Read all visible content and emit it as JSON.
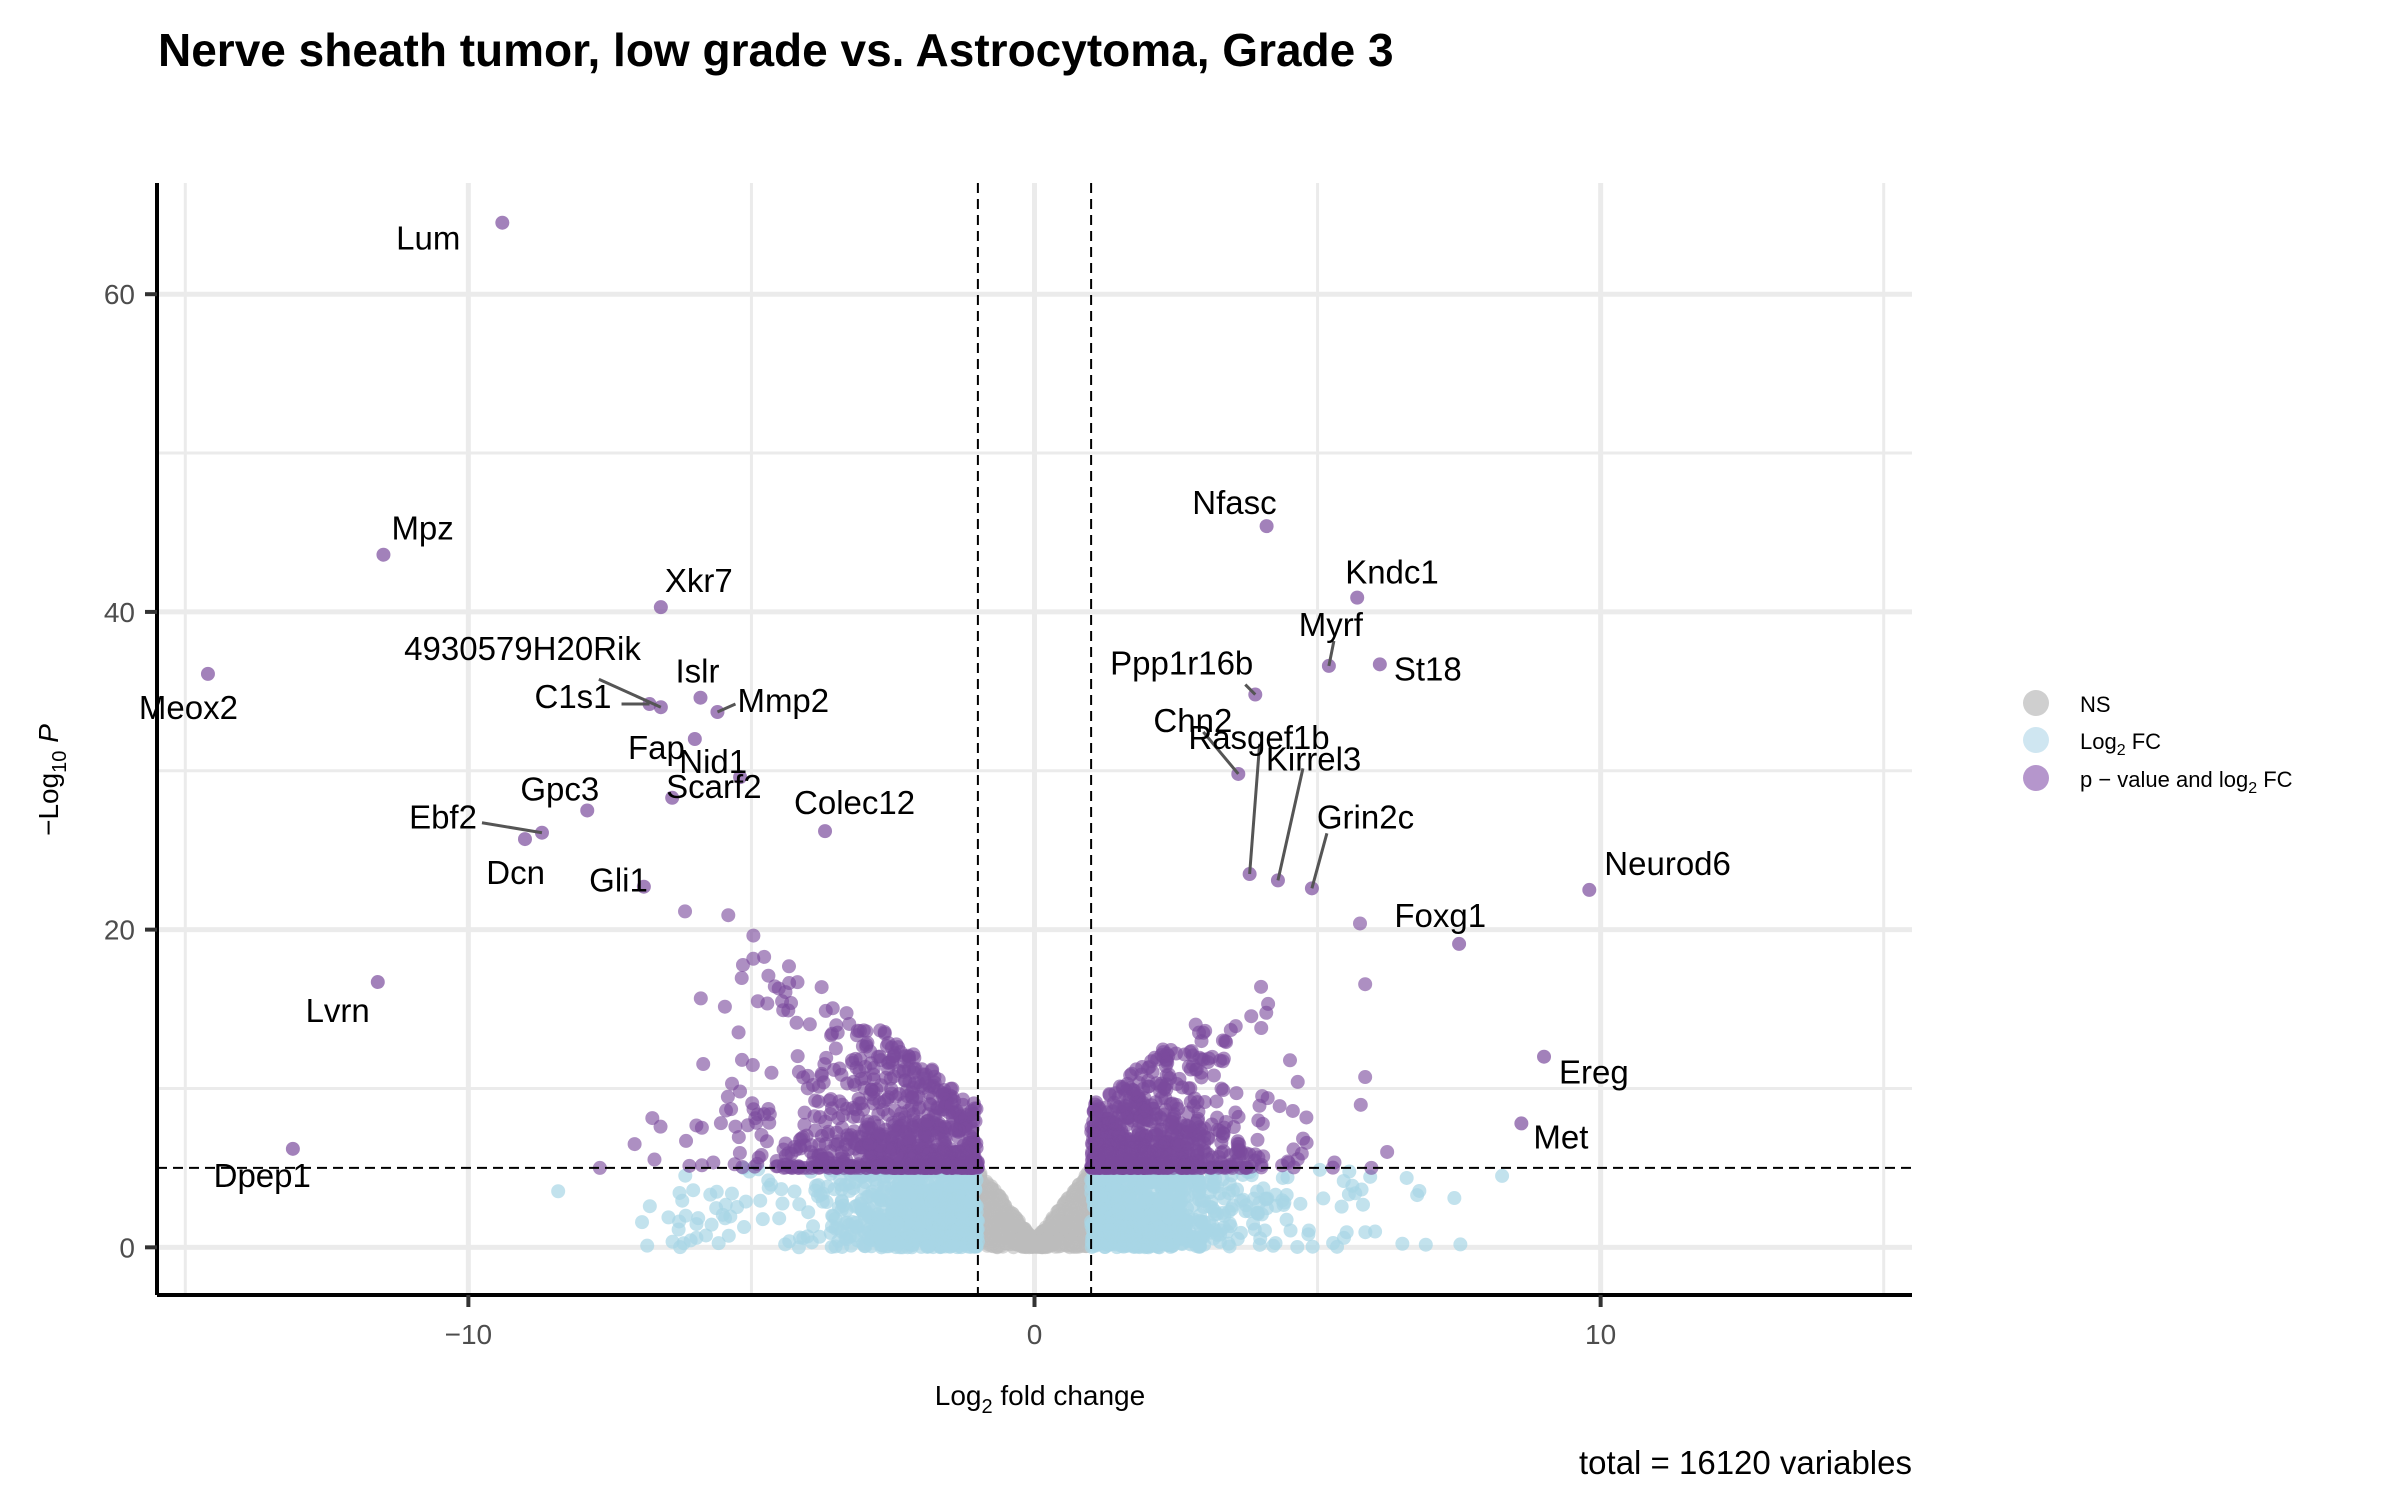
{
  "chart_data": {
    "type": "scatter",
    "title": "Nerve sheath tumor, low grade vs. Astrocytoma, Grade 3",
    "xlabel": "Log2 fold change",
    "ylabel": "−Log10 P",
    "xlim": [
      -15.5,
      15.5
    ],
    "ylim": [
      -3,
      67
    ],
    "x_ticks": [
      -10,
      0,
      10
    ],
    "x_tick_labels": [
      "−10",
      "0",
      "10"
    ],
    "y_ticks": [
      0,
      20,
      40,
      60
    ],
    "y_tick_labels": [
      "0",
      "20",
      "40",
      "60"
    ],
    "grid": true,
    "fc_cutoff": 1,
    "p_cutoff": 5,
    "legend_position": "right",
    "legend": [
      {
        "name": "NS",
        "color": "#cfcfcf"
      },
      {
        "name": "Log2 FC",
        "color": "#cfe6f1"
      },
      {
        "name": "p − value and log2 FC",
        "color": "#b596cc"
      }
    ],
    "colors": {
      "ns": "#bdbdbd",
      "fc": "#a8d5e6",
      "sig": "#7a4b9c"
    },
    "caption": "total = 16120 variables",
    "labeled_points": [
      {
        "gene": "Lum",
        "x": -9.4,
        "y": 64.5
      },
      {
        "gene": "Mpz",
        "x": -11.5,
        "y": 43.6
      },
      {
        "gene": "Xkr7",
        "x": -6.6,
        "y": 40.3
      },
      {
        "gene": "Meox2",
        "x": -14.6,
        "y": 36.1
      },
      {
        "gene": "4930579H20Rik",
        "x": -6.6,
        "y": 34.0
      },
      {
        "gene": "Islr",
        "x": -5.9,
        "y": 34.6
      },
      {
        "gene": "C1s1",
        "x": -6.8,
        "y": 34.2
      },
      {
        "gene": "Mmp2",
        "x": -5.6,
        "y": 33.7
      },
      {
        "gene": "Fap",
        "x": -6.0,
        "y": 32.0
      },
      {
        "gene": "Nid1",
        "x": -5.2,
        "y": 29.6
      },
      {
        "gene": "Gpc3",
        "x": -7.9,
        "y": 27.5
      },
      {
        "gene": "Scarf2",
        "x": -6.4,
        "y": 28.3
      },
      {
        "gene": "Colec12",
        "x": -3.7,
        "y": 26.2
      },
      {
        "gene": "Ebf2",
        "x": -8.7,
        "y": 26.1
      },
      {
        "gene": "Dcn",
        "x": -9.0,
        "y": 25.7
      },
      {
        "gene": "Gli1",
        "x": -6.9,
        "y": 22.7
      },
      {
        "gene": "Lvrn",
        "x": -11.6,
        "y": 16.7
      },
      {
        "gene": "Dpep1",
        "x": -13.1,
        "y": 6.2
      },
      {
        "gene": "Nfasc",
        "x": 4.1,
        "y": 45.4
      },
      {
        "gene": "Kndc1",
        "x": 5.7,
        "y": 40.9
      },
      {
        "gene": "Myrf",
        "x": 5.2,
        "y": 36.6
      },
      {
        "gene": "St18",
        "x": 6.1,
        "y": 36.7
      },
      {
        "gene": "Ppp1r16b",
        "x": 3.9,
        "y": 34.8
      },
      {
        "gene": "Chn2",
        "x": 3.6,
        "y": 29.8
      },
      {
        "gene": "Rasgef1b",
        "x": 3.8,
        "y": 23.5
      },
      {
        "gene": "Kirrel3",
        "x": 4.3,
        "y": 23.1
      },
      {
        "gene": "Grin2c",
        "x": 4.9,
        "y": 22.6
      },
      {
        "gene": "Neurod6",
        "x": 9.8,
        "y": 22.5
      },
      {
        "gene": "Foxg1",
        "x": 7.5,
        "y": 19.1
      },
      {
        "gene": "Ereg",
        "x": 9.0,
        "y": 12.0
      },
      {
        "gene": "Met",
        "x": 8.6,
        "y": 7.8
      }
    ]
  }
}
